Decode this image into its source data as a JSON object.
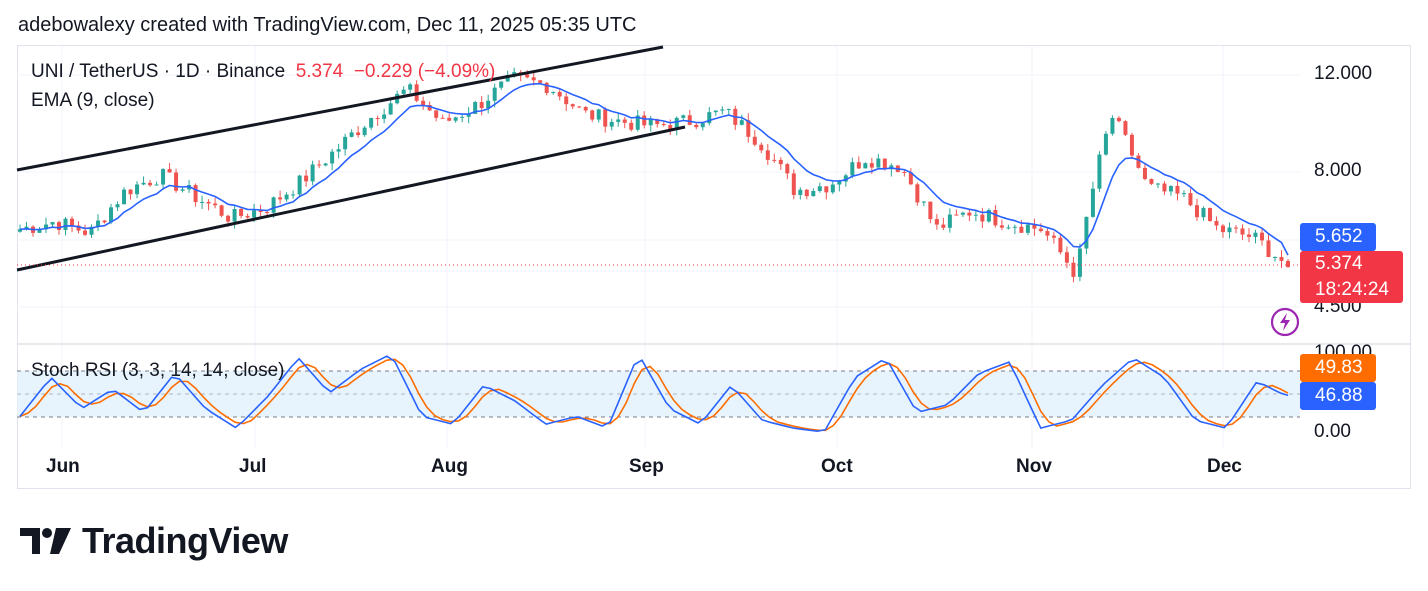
{
  "attribution": "adebowalexy created with TradingView.com, Dec 11, 2025 05:35 UTC",
  "legend": {
    "symbol": "UNI / TetherUS · 1D · Binance",
    "last": "5.374",
    "change": "−0.229 (−4.09%)",
    "ema": "EMA (9, close)",
    "stoch": "Stoch RSI (3, 3, 14, 14, close)"
  },
  "price_axis": [
    "12.000",
    "8.000",
    "4.500"
  ],
  "rsi_axis": [
    "100.00",
    "0.00"
  ],
  "tags": {
    "ema": "5.652",
    "last": "5.374",
    "countdown": "18:24:24",
    "rsi_k": "49.83",
    "rsi_d": "46.88"
  },
  "months": [
    "Jun",
    "Jul",
    "Aug",
    "Sep",
    "Oct",
    "Nov",
    "Dec"
  ],
  "brand": "TradingView",
  "colors": {
    "up": "#26a69a",
    "down": "#ef5350",
    "ema": "#2962ff",
    "stoch_k": "#2962ff",
    "stoch_d": "#ff6d00",
    "channel": "#131722",
    "rsi_band": "#e3f2fd",
    "last_price": "#f23645"
  },
  "chart_data": [
    {
      "type": "candlestick",
      "title": "UNI / TetherUS · 1D · Binance",
      "log_scale": true,
      "ylim": [
        3.9,
        13.2
      ],
      "x": [
        "Jun",
        "Jul",
        "Aug",
        "Sep",
        "Oct",
        "Nov",
        "Dec"
      ],
      "close_approx": [
        6.3,
        6.5,
        6.2,
        7.4,
        7.9,
        7.2,
        6.6,
        6.9,
        7.7,
        8.8,
        10.1,
        11.3,
        9.8,
        10.6,
        11.8,
        11.5,
        10.2,
        9.9,
        9.7,
        9.9,
        10.3,
        9.1,
        7.4,
        7.6,
        8.5,
        8.2,
        6.3,
        6.8,
        6.5,
        6.3,
        5.2,
        10.1,
        7.5,
        7.2,
        6.3,
        6.1,
        5.4
      ],
      "series": [
        {
          "name": "EMA (9, close)",
          "last": 5.652
        },
        {
          "name": "Channel upper",
          "x": [
            "start",
            "mid-Aug"
          ],
          "y": [
            7.9,
            13.0
          ]
        },
        {
          "name": "Channel lower",
          "x": [
            "start",
            "early Sep"
          ],
          "y": [
            5.3,
            10.0
          ]
        }
      ],
      "last": 5.374,
      "change": -0.229,
      "change_pct": -4.09
    },
    {
      "type": "line",
      "title": "Stoch RSI (3, 3, 14, 14, close)",
      "ylim": [
        0,
        100
      ],
      "bands": [
        20,
        50,
        80
      ],
      "series": [
        {
          "name": "K",
          "last": 49.83
        },
        {
          "name": "D",
          "last": 46.88
        }
      ],
      "k_approx": [
        20,
        70,
        30,
        55,
        25,
        75,
        30,
        5,
        45,
        95,
        50,
        80,
        100,
        20,
        10,
        60,
        40,
        10,
        20,
        5,
        100,
        30,
        10,
        60,
        15,
        5,
        0,
        70,
        95,
        25,
        35,
        75,
        90,
        5,
        15,
        60,
        95,
        70,
        15,
        5,
        65,
        45
      ]
    }
  ]
}
